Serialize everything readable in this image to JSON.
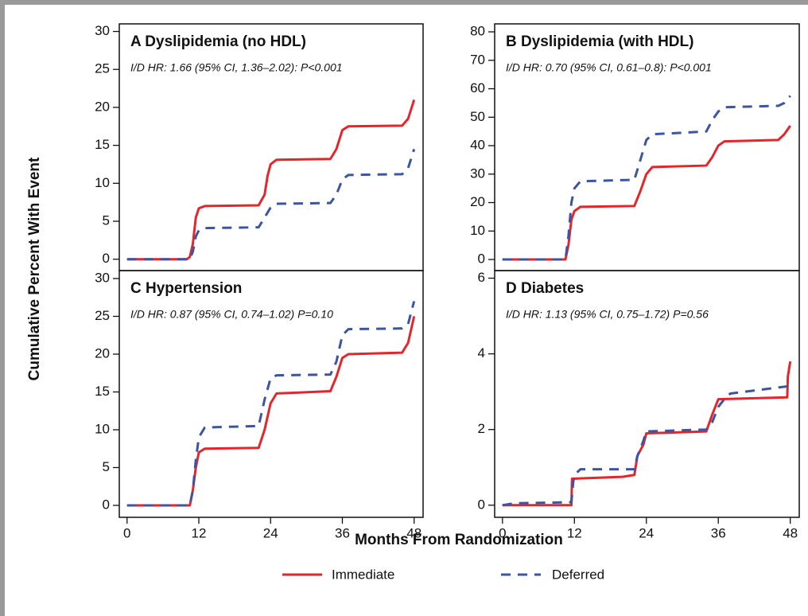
{
  "xlabel": "Months From Randomization",
  "ylabel": "Cumulative Percent With Event",
  "chart_data": [
    {
      "type": "line",
      "title": "A  Dyslipidemia (no HDL)",
      "subtitle": "I/D HR: 1.66 (95% CI, 1.36–2.02): P<0.001",
      "xlim": [
        -1.3,
        49.5
      ],
      "ylim": [
        -1.5,
        31
      ],
      "yticks": [
        0,
        5,
        10,
        15,
        20,
        25,
        30
      ],
      "xticks": [],
      "series": [
        {
          "name": "Immediate",
          "color": "#e3262b",
          "dash": false,
          "x": [
            0,
            10,
            10.5,
            11,
            11.5,
            12,
            13,
            22,
            23,
            23.5,
            24,
            25,
            34,
            35,
            36,
            37,
            46,
            47,
            48
          ],
          "values": [
            0,
            0,
            0.3,
            2,
            5.5,
            6.7,
            7,
            7.1,
            8.5,
            11,
            12.5,
            13.1,
            13.2,
            14.5,
            17,
            17.5,
            17.6,
            18.5,
            21
          ]
        },
        {
          "name": "Deferred",
          "color": "#3b55a3",
          "dash": true,
          "x": [
            0,
            10.5,
            11,
            11.5,
            12,
            13,
            22,
            23,
            24,
            25,
            34,
            35,
            36,
            37,
            46,
            47,
            48
          ],
          "values": [
            0,
            0,
            1,
            3,
            3.8,
            4.1,
            4.2,
            5.5,
            6.8,
            7.3,
            7.4,
            8.5,
            10.5,
            11.1,
            11.2,
            12,
            14.5
          ]
        }
      ]
    },
    {
      "type": "line",
      "title": "B  Dyslipidemia (with HDL)",
      "subtitle": "I/D HR: 0.70 (95% CI, 0.61–0.8): P<0.001",
      "xlim": [
        -1.3,
        49.5
      ],
      "ylim": [
        -3.9,
        82.8
      ],
      "yticks": [
        0,
        10,
        20,
        30,
        40,
        50,
        60,
        70,
        80
      ],
      "xticks": [],
      "series": [
        {
          "name": "Immediate",
          "color": "#e3262b",
          "dash": false,
          "x": [
            0,
            10.5,
            11,
            11.5,
            12,
            13,
            22,
            23,
            24,
            25,
            34,
            35,
            36,
            37,
            46,
            47,
            48
          ],
          "values": [
            0,
            0,
            5,
            14,
            17,
            18.5,
            18.8,
            24,
            30,
            32.5,
            33,
            36,
            40,
            41.5,
            42,
            44,
            47
          ]
        },
        {
          "name": "Deferred",
          "color": "#3b55a3",
          "dash": true,
          "x": [
            0,
            10.5,
            11,
            11.5,
            12,
            13,
            22,
            23,
            24,
            25,
            34,
            35,
            36,
            37,
            46,
            47,
            48
          ],
          "values": [
            0,
            0,
            8,
            20,
            25,
            27.5,
            28,
            35,
            42,
            44,
            45,
            49,
            52,
            53.5,
            54,
            55,
            57.5
          ]
        }
      ]
    },
    {
      "type": "line",
      "title": "C  Hypertension",
      "subtitle": "I/D HR: 0.87 (95% CI, 0.74–1.02) P=0.10",
      "xlim": [
        -1.3,
        49.5
      ],
      "ylim": [
        -1.58,
        31.05
      ],
      "yticks": [
        0,
        5,
        10,
        15,
        20,
        25,
        30
      ],
      "xticks": [
        0,
        12,
        24,
        36,
        48
      ],
      "series": [
        {
          "name": "Immediate",
          "color": "#e3262b",
          "dash": false,
          "x": [
            0,
            10.5,
            11,
            11.5,
            12,
            13,
            22,
            23,
            24,
            25,
            34,
            35,
            36,
            37,
            46,
            47,
            48
          ],
          "values": [
            0,
            0,
            2,
            5,
            7,
            7.5,
            7.6,
            10,
            13.5,
            14.8,
            15.1,
            17,
            19.5,
            20,
            20.2,
            21.5,
            25
          ]
        },
        {
          "name": "Deferred",
          "color": "#3b55a3",
          "dash": true,
          "x": [
            0,
            10.5,
            11,
            11.5,
            12,
            13,
            22,
            23,
            24,
            25,
            34,
            35,
            36,
            37,
            46,
            47,
            48
          ],
          "values": [
            0,
            0,
            2,
            6,
            9,
            10.3,
            10.5,
            14,
            16.8,
            17.2,
            17.3,
            19,
            22.5,
            23.3,
            23.4,
            24,
            27
          ]
        }
      ]
    },
    {
      "type": "line",
      "title": "D  Diabetes",
      "subtitle": "I/D HR: 1.13 (95% CI, 0.75–1.72) P=0.56",
      "xlim": [
        -1.3,
        49.5
      ],
      "ylim": [
        -0.32,
        6.2
      ],
      "yticks": [
        0,
        2,
        4,
        6
      ],
      "xticks": [
        0,
        12,
        24,
        36,
        48
      ],
      "series": [
        {
          "name": "Immediate",
          "color": "#e3262b",
          "dash": false,
          "x": [
            0,
            11.5,
            11.6,
            20,
            22,
            22.5,
            23.5,
            24,
            34,
            35,
            36,
            47.5,
            47.6,
            48
          ],
          "values": [
            0,
            0,
            0.7,
            0.75,
            0.8,
            1.3,
            1.6,
            1.9,
            1.95,
            2.4,
            2.8,
            2.85,
            3.4,
            3.8
          ]
        },
        {
          "name": "Deferred",
          "color": "#3b55a3",
          "dash": true,
          "x": [
            0,
            2,
            11.5,
            11.8,
            12,
            13,
            22,
            22.5,
            23.5,
            24,
            34,
            35,
            36,
            37,
            38,
            48
          ],
          "values": [
            0,
            0.05,
            0.08,
            0.6,
            0.8,
            0.95,
            0.95,
            1.3,
            1.7,
            1.95,
            2.0,
            2.2,
            2.6,
            2.8,
            2.95,
            3.15
          ]
        }
      ]
    }
  ]
}
